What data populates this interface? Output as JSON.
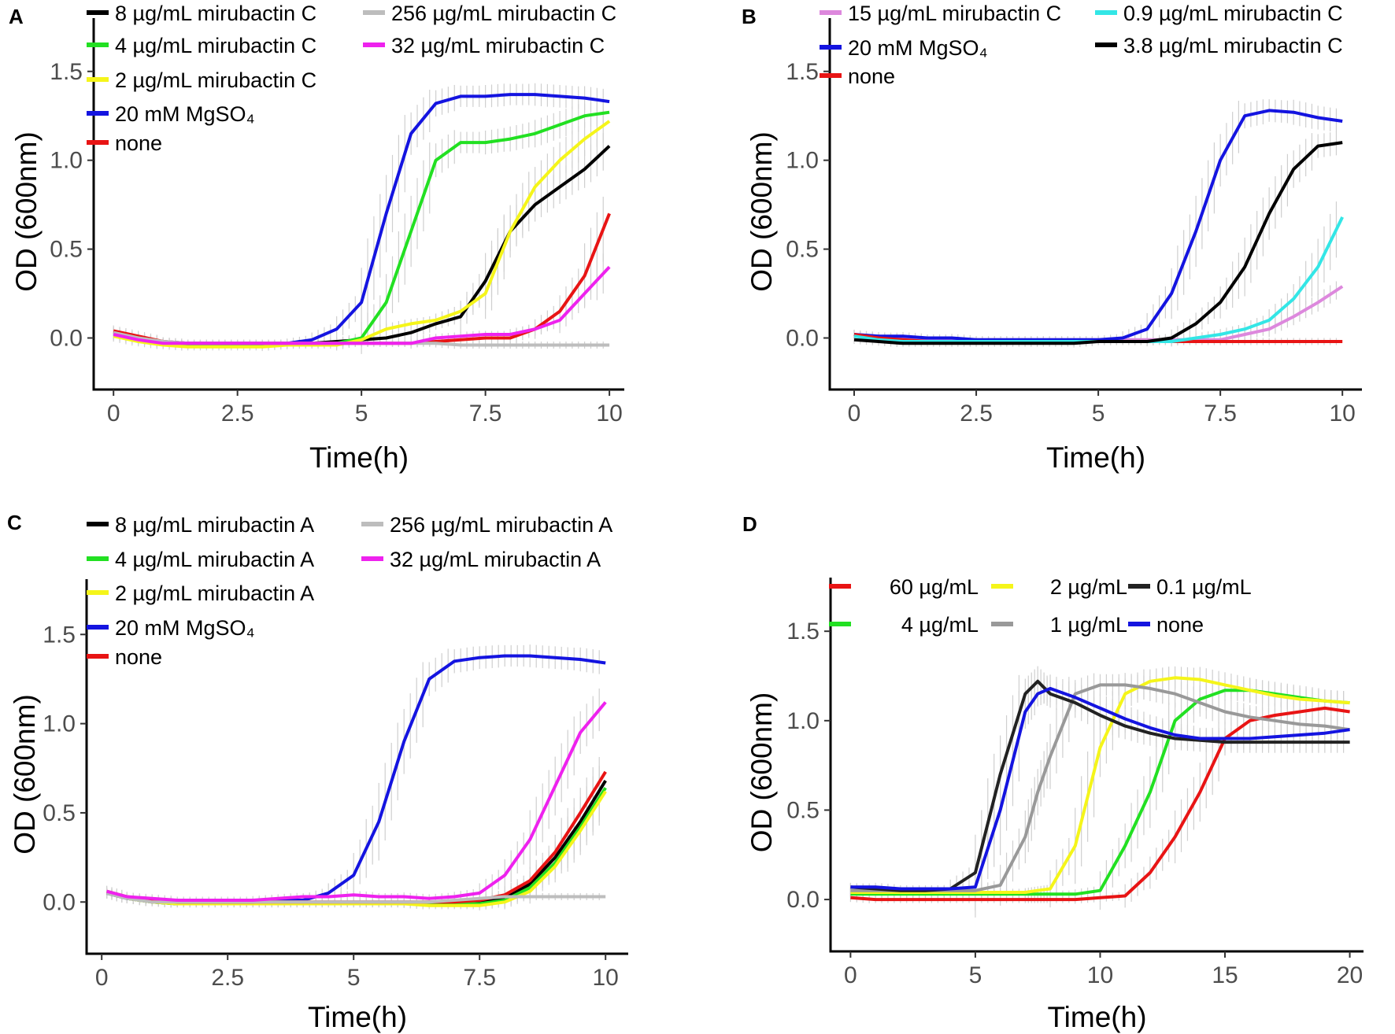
{
  "chart_data": [
    {
      "panel": "A",
      "type": "line",
      "xlabel": "Time(h)",
      "ylabel": "OD (600nm)",
      "xlim": [
        -0.4,
        10.3
      ],
      "ylim": [
        -0.29,
        1.8
      ],
      "xticks": [
        0,
        2.5,
        5,
        7.5,
        10
      ],
      "xtick_labels": [
        "0",
        "2.5",
        "5",
        "7.5",
        "10"
      ],
      "yticks": [
        0,
        0.5,
        1.0,
        1.5
      ],
      "ytick_labels": [
        "0.0",
        "0.5",
        "1.0",
        "1.5"
      ],
      "grid": false,
      "legend": "top-left",
      "x": [
        0,
        0.5,
        1,
        1.5,
        2,
        2.5,
        3,
        3.5,
        4,
        4.5,
        5,
        5.5,
        6,
        6.5,
        7,
        7.5,
        8,
        8.5,
        9,
        9.5,
        10
      ],
      "series": [
        {
          "name": "8 µg/mL mirubactin C",
          "color": "#000000",
          "values": [
            0.03,
            0,
            -0.03,
            -0.04,
            -0.04,
            -0.04,
            -0.04,
            -0.04,
            -0.03,
            -0.02,
            -0.01,
            0.0,
            0.03,
            0.08,
            0.12,
            0.32,
            0.6,
            0.75,
            0.85,
            0.95,
            1.08
          ]
        },
        {
          "name": "4 µg/mL mirubactin C",
          "color": "#22e022",
          "values": [
            0.02,
            -0.01,
            -0.03,
            -0.04,
            -0.04,
            -0.04,
            -0.04,
            -0.03,
            -0.03,
            -0.03,
            0.0,
            0.2,
            0.6,
            1.0,
            1.1,
            1.1,
            1.12,
            1.15,
            1.2,
            1.25,
            1.27
          ]
        },
        {
          "name": "2 µg/mL mirubactin C",
          "color": "#f5f51a",
          "values": [
            0.01,
            -0.02,
            -0.04,
            -0.05,
            -0.05,
            -0.05,
            -0.05,
            -0.04,
            -0.04,
            -0.04,
            -0.01,
            0.05,
            0.08,
            0.1,
            0.15,
            0.25,
            0.6,
            0.85,
            1.0,
            1.12,
            1.22
          ]
        },
        {
          "name": "20 mM MgSO₄",
          "color": "#1414e0",
          "values": [
            0.03,
            0,
            -0.02,
            -0.03,
            -0.03,
            -0.03,
            -0.03,
            -0.03,
            -0.01,
            0.05,
            0.2,
            0.7,
            1.15,
            1.32,
            1.36,
            1.36,
            1.37,
            1.37,
            1.36,
            1.35,
            1.33
          ]
        },
        {
          "name": "none",
          "color": "#e81414",
          "values": [
            0.04,
            0.01,
            -0.02,
            -0.03,
            -0.03,
            -0.03,
            -0.03,
            -0.03,
            -0.03,
            -0.03,
            -0.03,
            -0.03,
            -0.03,
            -0.02,
            -0.01,
            0.0,
            0.0,
            0.05,
            0.15,
            0.35,
            0.7
          ]
        },
        {
          "name": "256 µg/mL mirubactin C",
          "color": "#bdbdbd",
          "values": [
            0.03,
            0,
            -0.02,
            -0.03,
            -0.03,
            -0.03,
            -0.03,
            -0.03,
            -0.03,
            -0.03,
            -0.03,
            -0.03,
            -0.03,
            -0.03,
            -0.04,
            -0.04,
            -0.04,
            -0.04,
            -0.04,
            -0.04,
            -0.04
          ]
        },
        {
          "name": "32 µg/mL mirubactin C",
          "color": "#ee22ee",
          "values": [
            0.02,
            -0.01,
            -0.03,
            -0.03,
            -0.03,
            -0.03,
            -0.03,
            -0.03,
            -0.03,
            -0.03,
            -0.03,
            -0.03,
            -0.03,
            0.0,
            0.01,
            0.02,
            0.02,
            0.05,
            0.1,
            0.25,
            0.4
          ]
        }
      ]
    },
    {
      "panel": "B",
      "type": "line",
      "xlabel": "Time(h)",
      "ylabel": "OD (600nm)",
      "xlim": [
        -0.5,
        10.4
      ],
      "ylim": [
        -0.29,
        1.8
      ],
      "xticks": [
        0,
        2.5,
        5,
        7.5,
        10
      ],
      "xtick_labels": [
        "0",
        "2.5",
        "5",
        "7.5",
        "10"
      ],
      "yticks": [
        0,
        0.5,
        1.0,
        1.5
      ],
      "ytick_labels": [
        "0.0",
        "0.5",
        "1.0",
        "1.5"
      ],
      "grid": false,
      "legend": "top-left",
      "x": [
        0,
        0.5,
        1,
        1.5,
        2,
        2.5,
        3,
        3.5,
        4,
        4.5,
        5,
        5.5,
        6,
        6.5,
        7,
        7.5,
        8,
        8.5,
        9,
        9.5,
        10
      ],
      "series": [
        {
          "name": "15 µg/mL mirubactin C",
          "color": "#dd88dd",
          "values": [
            0.02,
            0.01,
            0,
            -0.01,
            -0.01,
            -0.01,
            -0.01,
            -0.01,
            -0.01,
            -0.01,
            -0.01,
            -0.01,
            -0.01,
            -0.01,
            -0.01,
            -0.01,
            0.02,
            0.05,
            0.12,
            0.2,
            0.29
          ]
        },
        {
          "name": "20 mM MgSO₄",
          "color": "#1414e0",
          "values": [
            0.02,
            0.01,
            0.01,
            0,
            0,
            -0.01,
            -0.01,
            -0.01,
            -0.01,
            -0.01,
            -0.01,
            0.0,
            0.05,
            0.25,
            0.6,
            1.0,
            1.25,
            1.28,
            1.27,
            1.24,
            1.22
          ]
        },
        {
          "name": "none",
          "color": "#e81414",
          "values": [
            0.02,
            0,
            -0.01,
            -0.02,
            -0.02,
            -0.02,
            -0.02,
            -0.02,
            -0.02,
            -0.02,
            -0.02,
            -0.02,
            -0.02,
            -0.02,
            -0.02,
            -0.02,
            -0.02,
            -0.02,
            -0.02,
            -0.02,
            -0.02
          ]
        },
        {
          "name": "0.9 µg/mL mirubactin C",
          "color": "#33e6e6",
          "values": [
            0.01,
            -0.01,
            -0.02,
            -0.02,
            -0.02,
            -0.02,
            -0.02,
            -0.02,
            -0.02,
            -0.02,
            -0.02,
            -0.02,
            -0.02,
            -0.02,
            0.0,
            0.02,
            0.05,
            0.1,
            0.22,
            0.4,
            0.68
          ]
        },
        {
          "name": "3.8 µg/mL mirubactin C",
          "color": "#000000",
          "values": [
            -0.01,
            -0.02,
            -0.03,
            -0.03,
            -0.03,
            -0.03,
            -0.03,
            -0.03,
            -0.03,
            -0.03,
            -0.02,
            -0.02,
            -0.02,
            0.0,
            0.08,
            0.2,
            0.4,
            0.7,
            0.95,
            1.08,
            1.1
          ]
        }
      ]
    },
    {
      "panel": "C",
      "type": "line",
      "xlabel": "Time(h)",
      "ylabel": "OD (600nm)",
      "xlim": [
        -0.3,
        10.45
      ],
      "ylim": [
        -0.29,
        1.81
      ],
      "xticks": [
        0,
        2.5,
        5,
        7.5,
        10
      ],
      "xtick_labels": [
        "0",
        "2.5",
        "5",
        "7.5",
        "10"
      ],
      "yticks": [
        0,
        0.5,
        1.0,
        1.5
      ],
      "ytick_labels": [
        "0.0",
        "0.5",
        "1.0",
        "1.5"
      ],
      "grid": false,
      "legend": "top-left",
      "x": [
        0.1,
        0.5,
        1,
        1.5,
        2,
        2.5,
        3,
        3.5,
        4,
        4.5,
        5,
        5.5,
        6,
        6.5,
        7,
        7.5,
        8,
        8.5,
        9,
        9.5,
        10
      ],
      "series": [
        {
          "name": "8 µg/mL mirubactin A",
          "color": "#000000",
          "values": [
            0.05,
            0.02,
            0.0,
            -0.01,
            -0.01,
            -0.01,
            -0.01,
            -0.01,
            -0.01,
            -0.01,
            -0.01,
            -0.01,
            -0.01,
            -0.01,
            -0.01,
            0.0,
            0.02,
            0.1,
            0.25,
            0.45,
            0.68
          ]
        },
        {
          "name": "4 µg/mL mirubactin A",
          "color": "#22e022",
          "values": [
            0.05,
            0.02,
            0.0,
            -0.01,
            -0.01,
            -0.01,
            -0.01,
            -0.01,
            -0.01,
            -0.01,
            -0.01,
            -0.01,
            -0.01,
            -0.01,
            -0.01,
            -0.01,
            0.01,
            0.08,
            0.22,
            0.42,
            0.64
          ]
        },
        {
          "name": "2 µg/mL mirubactin A",
          "color": "#f5f51a",
          "values": [
            0.05,
            0.02,
            0.0,
            -0.01,
            -0.01,
            -0.01,
            -0.01,
            -0.01,
            -0.01,
            -0.01,
            -0.01,
            -0.01,
            -0.01,
            -0.02,
            -0.02,
            -0.02,
            0.0,
            0.06,
            0.2,
            0.4,
            0.62
          ]
        },
        {
          "name": "20 mM MgSO₄",
          "color": "#1414e0",
          "values": [
            0.05,
            0.02,
            0.01,
            0.0,
            0.0,
            0.0,
            0.0,
            0.01,
            0.01,
            0.05,
            0.15,
            0.45,
            0.9,
            1.25,
            1.35,
            1.37,
            1.38,
            1.38,
            1.37,
            1.36,
            1.34
          ]
        },
        {
          "name": "none",
          "color": "#e81414",
          "values": [
            0.06,
            0.03,
            0.01,
            0.0,
            0.0,
            0.0,
            0.0,
            0.0,
            0.0,
            0.0,
            0.0,
            0.0,
            0.0,
            0.0,
            0.0,
            0.01,
            0.04,
            0.12,
            0.28,
            0.5,
            0.73
          ]
        },
        {
          "name": "256 µg/mL mirubactin A",
          "color": "#bdbdbd",
          "values": [
            0.05,
            0.02,
            0.0,
            0.0,
            0.0,
            0.0,
            0.0,
            0.0,
            0.0,
            0.0,
            0.0,
            0.0,
            0.0,
            0.0,
            0.01,
            0.02,
            0.03,
            0.03,
            0.03,
            0.03,
            0.03
          ]
        },
        {
          "name": "32 µg/mL mirubactin A",
          "color": "#ee22ee",
          "values": [
            0.06,
            0.03,
            0.02,
            0.01,
            0.01,
            0.01,
            0.01,
            0.02,
            0.03,
            0.03,
            0.04,
            0.03,
            0.03,
            0.02,
            0.03,
            0.05,
            0.15,
            0.35,
            0.65,
            0.95,
            1.12
          ]
        }
      ]
    },
    {
      "panel": "D",
      "type": "line",
      "xlabel": "Time(h)",
      "ylabel": "OD (600nm)",
      "xlim": [
        -0.8,
        20.55
      ],
      "ylim": [
        -0.29,
        1.8
      ],
      "xticks": [
        0,
        5,
        10,
        15,
        20
      ],
      "xtick_labels": [
        "0",
        "5",
        "10",
        "15",
        "20"
      ],
      "yticks": [
        0,
        0.5,
        1.0,
        1.5
      ],
      "ytick_labels": [
        "0.0",
        "0.5",
        "1.0",
        "1.5"
      ],
      "grid": false,
      "legend": "top-left",
      "x": [
        0,
        1,
        2,
        3,
        4,
        5,
        6,
        7,
        7.5,
        8,
        9,
        10,
        11,
        12,
        13,
        14,
        15,
        16,
        17,
        18,
        19,
        20
      ],
      "series": [
        {
          "name": "60 µg/mL",
          "color": "#e81414",
          "values": [
            0.01,
            0,
            0,
            0,
            0,
            0,
            0,
            0,
            0,
            0,
            0,
            0.01,
            0.02,
            0.15,
            0.35,
            0.6,
            0.9,
            1.0,
            1.03,
            1.05,
            1.07,
            1.05
          ]
        },
        {
          "name": "4 µg/mL",
          "color": "#22e022",
          "values": [
            0.03,
            0.03,
            0.03,
            0.03,
            0.03,
            0.03,
            0.03,
            0.03,
            0.03,
            0.03,
            0.03,
            0.05,
            0.3,
            0.6,
            1.0,
            1.12,
            1.17,
            1.17,
            1.15,
            1.13,
            1.11,
            1.1
          ]
        },
        {
          "name": "2 µg/mL",
          "color": "#f5f51a",
          "values": [
            0.04,
            0.04,
            0.04,
            0.04,
            0.04,
            0.04,
            0.04,
            0.04,
            0.05,
            0.06,
            0.3,
            0.85,
            1.15,
            1.22,
            1.24,
            1.23,
            1.2,
            1.17,
            1.14,
            1.12,
            1.11,
            1.1
          ]
        },
        {
          "name": "1 µg/mL",
          "color": "#999999",
          "values": [
            0.05,
            0.05,
            0.05,
            0.05,
            0.05,
            0.05,
            0.08,
            0.35,
            0.6,
            0.8,
            1.15,
            1.2,
            1.2,
            1.18,
            1.15,
            1.1,
            1.05,
            1.02,
            1.0,
            0.98,
            0.97,
            0.95
          ]
        },
        {
          "name": "0.1 µg/mL",
          "color": "#222222",
          "values": [
            0.07,
            0.06,
            0.05,
            0.05,
            0.06,
            0.15,
            0.7,
            1.15,
            1.22,
            1.15,
            1.1,
            1.03,
            0.97,
            0.93,
            0.9,
            0.89,
            0.88,
            0.88,
            0.88,
            0.88,
            0.88,
            0.88
          ]
        },
        {
          "name": "none",
          "color": "#1414e0",
          "values": [
            0.07,
            0.07,
            0.06,
            0.06,
            0.06,
            0.07,
            0.5,
            1.05,
            1.15,
            1.18,
            1.13,
            1.07,
            1.01,
            0.96,
            0.92,
            0.9,
            0.9,
            0.9,
            0.91,
            0.92,
            0.93,
            0.95
          ]
        }
      ]
    }
  ]
}
